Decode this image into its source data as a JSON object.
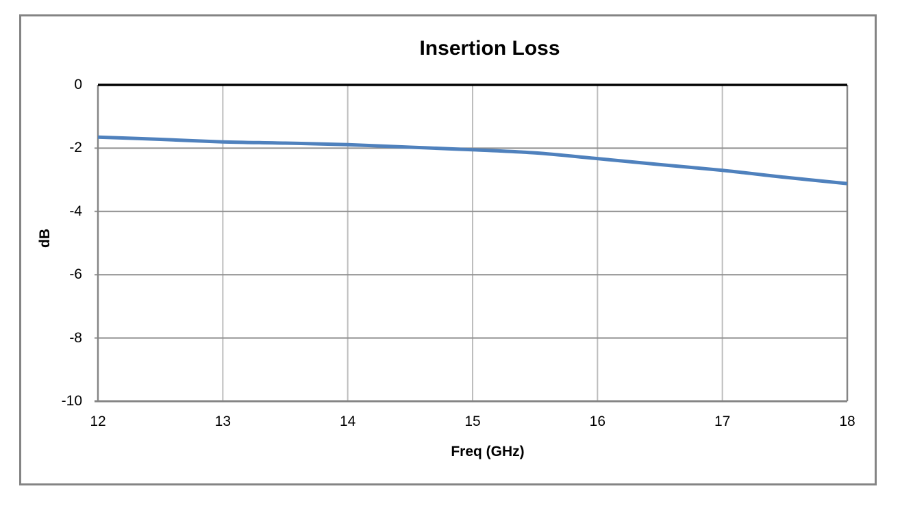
{
  "chart_data": {
    "type": "line",
    "title": "Insertion Loss",
    "xlabel": "Freq (GHz)",
    "ylabel": "dB",
    "xlim": [
      12,
      18
    ],
    "ylim": [
      -10,
      0
    ],
    "x_ticks": [
      12,
      13,
      14,
      15,
      16,
      17,
      18
    ],
    "y_ticks": [
      0,
      -2,
      -4,
      -6,
      -8,
      -10
    ],
    "grid": true,
    "legend": false,
    "series": [
      {
        "name": "Insertion Loss",
        "x": [
          12,
          12.5,
          13,
          13.5,
          14,
          14.5,
          15,
          15.5,
          16,
          16.5,
          17,
          17.5,
          18
        ],
        "y": [
          -1.65,
          -1.72,
          -1.8,
          -1.84,
          -1.89,
          -1.97,
          -2.05,
          -2.15,
          -2.33,
          -2.52,
          -2.7,
          -2.92,
          -3.12
        ]
      }
    ],
    "style": {
      "line_color": "#4F81BD",
      "line_width": 5,
      "h_grid_color": "#8E8E8E",
      "v_grid_color": "#BDBDBD",
      "plot_border_color": "#858585",
      "zero_axis_color": "#000000",
      "outer_border_color": "#848484",
      "background": "#FFFFFF",
      "text_color": "#000000"
    }
  }
}
